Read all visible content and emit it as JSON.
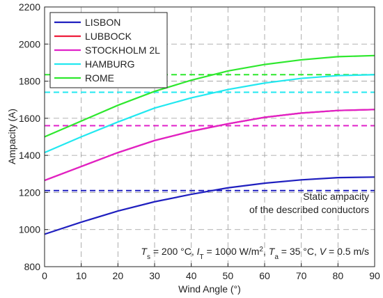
{
  "chart_data": {
    "type": "line",
    "xlabel": "Wind Angle (°)",
    "ylabel": "Ampacity (A)",
    "x": [
      0,
      10,
      20,
      30,
      40,
      50,
      60,
      70,
      80,
      90
    ],
    "xlim": [
      0,
      90
    ],
    "xticks": [
      0,
      10,
      20,
      30,
      40,
      50,
      60,
      70,
      80,
      90
    ],
    "ylim": [
      800,
      2200
    ],
    "yticks": [
      800,
      1000,
      1200,
      1400,
      1600,
      1800,
      2000,
      2200
    ],
    "grid": true,
    "legend": "upper left",
    "series": [
      {
        "name": "LISBON",
        "color": "#1f1fbf",
        "values": [
          975,
          1040,
          1100,
          1150,
          1190,
          1225,
          1250,
          1268,
          1280,
          1283
        ],
        "static": 1210
      },
      {
        "name": "LUBBOCK",
        "color": "#ee1c3a",
        "values": [
          1265,
          1340,
          1415,
          1480,
          1530,
          1570,
          1605,
          1628,
          1642,
          1647
        ],
        "static": 1560
      },
      {
        "name": "STOCKHOLM 2L",
        "color": "#e020c8",
        "values": [
          1265,
          1340,
          1415,
          1480,
          1530,
          1570,
          1605,
          1628,
          1642,
          1647
        ],
        "static": 1560
      },
      {
        "name": "HAMBURG",
        "color": "#22e8f0",
        "values": [
          1415,
          1500,
          1580,
          1655,
          1710,
          1755,
          1790,
          1815,
          1830,
          1835
        ],
        "static": 1740
      },
      {
        "name": "ROME",
        "color": "#2ee82e",
        "values": [
          1500,
          1585,
          1670,
          1745,
          1805,
          1855,
          1890,
          1915,
          1932,
          1938
        ],
        "static": 1835
      }
    ],
    "annotations": [
      "Static ampacity",
      "of the described conductors"
    ],
    "conditions": [
      {
        "text": "T",
        "style": "italic"
      },
      {
        "text": "s",
        "style": "sub"
      },
      {
        "text": " = 200 °C, ",
        "style": "normal"
      },
      {
        "text": "I",
        "style": "italic"
      },
      {
        "text": "T",
        "style": "sub"
      },
      {
        "text": " = 1000 W/m",
        "style": "normal"
      },
      {
        "text": "2",
        "style": "sup"
      },
      {
        "text": ", ",
        "style": "normal"
      },
      {
        "text": "T",
        "style": "italic"
      },
      {
        "text": "a",
        "style": "sub"
      },
      {
        "text": " = 35 °C, ",
        "style": "normal"
      },
      {
        "text": "V",
        "style": "italic"
      },
      {
        "text": " = 0.5 m/s",
        "style": "normal"
      }
    ]
  }
}
